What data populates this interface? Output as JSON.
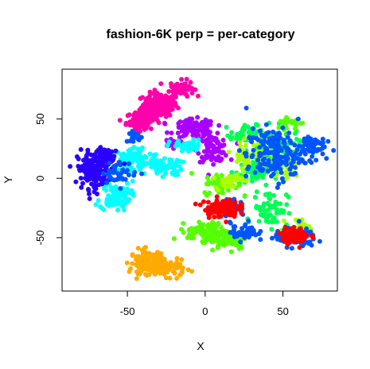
{
  "chart_data": {
    "type": "scatter",
    "title": "fashion-6K perp = per-category",
    "xlabel": "X",
    "ylabel": "Y",
    "xlim": [
      -92,
      85
    ],
    "ylim": [
      -95,
      92
    ],
    "xticks": [
      -50,
      0,
      50
    ],
    "yticks": [
      -50,
      0,
      50
    ],
    "xtick_labels": [
      "-50",
      "0",
      "50"
    ],
    "ytick_labels": [
      "-50",
      "0",
      "50"
    ],
    "grid": false,
    "legend": "none",
    "series": [
      {
        "color": "#FF00AA",
        "clusters": [
          {
            "cx": -29,
            "cy": 62,
            "rx": 10,
            "ry": 9,
            "n": 140
          },
          {
            "cx": -15,
            "cy": 76,
            "rx": 7,
            "ry": 6,
            "n": 70
          },
          {
            "cx": -42,
            "cy": 48,
            "rx": 8,
            "ry": 7,
            "n": 90
          },
          {
            "cx": -36,
            "cy": 55,
            "rx": 8,
            "ry": 6,
            "n": 70
          }
        ]
      },
      {
        "color": "#AA00FF",
        "clusters": [
          {
            "cx": -7,
            "cy": 42,
            "rx": 12,
            "ry": 7,
            "n": 110
          },
          {
            "cx": 5,
            "cy": 25,
            "rx": 9,
            "ry": 10,
            "n": 80
          },
          {
            "cx": -22,
            "cy": 30,
            "rx": 5,
            "ry": 4,
            "n": 20
          }
        ]
      },
      {
        "color": "#00FFFF",
        "clusters": [
          {
            "cx": -45,
            "cy": 15,
            "rx": 15,
            "ry": 11,
            "n": 110
          },
          {
            "cx": -58,
            "cy": -15,
            "rx": 9,
            "ry": 11,
            "n": 90
          },
          {
            "cx": -25,
            "cy": 10,
            "rx": 9,
            "ry": 7,
            "n": 50
          },
          {
            "cx": -12,
            "cy": 27,
            "rx": 10,
            "ry": 5,
            "n": 40
          }
        ]
      },
      {
        "color": "#2A00FF",
        "clusters": [
          {
            "cx": -72,
            "cy": 7,
            "rx": 9,
            "ry": 14,
            "n": 160
          },
          {
            "cx": -62,
            "cy": 17,
            "rx": 7,
            "ry": 8,
            "n": 60
          }
        ]
      },
      {
        "color": "#FFAA00",
        "clusters": [
          {
            "cx": -37,
            "cy": -70,
            "rx": 10,
            "ry": 9,
            "n": 110
          },
          {
            "cx": -25,
            "cy": -76,
            "rx": 11,
            "ry": 6,
            "n": 90
          }
        ]
      },
      {
        "color": "#00FF55",
        "clusters": [
          {
            "cx": 45,
            "cy": 25,
            "rx": 15,
            "ry": 15,
            "n": 120
          },
          {
            "cx": 42,
            "cy": -25,
            "rx": 10,
            "ry": 14,
            "n": 70
          },
          {
            "cx": 30,
            "cy": 5,
            "rx": 10,
            "ry": 9,
            "n": 60
          },
          {
            "cx": 25,
            "cy": 37,
            "rx": 8,
            "ry": 7,
            "n": 40
          }
        ]
      },
      {
        "color": "#55FF00",
        "clusters": [
          {
            "cx": 2,
            "cy": -45,
            "rx": 12,
            "ry": 7,
            "n": 110
          },
          {
            "cx": 15,
            "cy": -52,
            "rx": 11,
            "ry": 7,
            "n": 80
          },
          {
            "cx": 10,
            "cy": -5,
            "rx": 10,
            "ry": 8,
            "n": 50
          },
          {
            "cx": 55,
            "cy": 47,
            "rx": 8,
            "ry": 5,
            "n": 30
          }
        ]
      },
      {
        "color": "#AAFF00",
        "clusters": [
          {
            "cx": 28,
            "cy": 20,
            "rx": 10,
            "ry": 10,
            "n": 50
          },
          {
            "cx": 50,
            "cy": 8,
            "rx": 10,
            "ry": 10,
            "n": 40
          },
          {
            "cx": 15,
            "cy": -2,
            "rx": 8,
            "ry": 6,
            "n": 30
          },
          {
            "cx": 60,
            "cy": -40,
            "rx": 7,
            "ry": 5,
            "n": 20
          }
        ]
      },
      {
        "color": "#0055FF",
        "clusters": [
          {
            "cx": 45,
            "cy": 20,
            "rx": 17,
            "ry": 20,
            "n": 180
          },
          {
            "cx": 68,
            "cy": 28,
            "rx": 8,
            "ry": 8,
            "n": 60
          },
          {
            "cx": 58,
            "cy": -50,
            "rx": 12,
            "ry": 7,
            "n": 100
          },
          {
            "cx": 25,
            "cy": -45,
            "rx": 8,
            "ry": 7,
            "n": 50
          },
          {
            "cx": 15,
            "cy": -25,
            "rx": 10,
            "ry": 6,
            "n": 60
          },
          {
            "cx": -55,
            "cy": 5,
            "rx": 10,
            "ry": 8,
            "n": 40
          },
          {
            "cx": -45,
            "cy": 35,
            "rx": 6,
            "ry": 4,
            "n": 20
          }
        ]
      },
      {
        "color": "#FF0000",
        "clusters": [
          {
            "cx": 10,
            "cy": -25,
            "rx": 10,
            "ry": 7,
            "n": 110
          },
          {
            "cx": 58,
            "cy": -48,
            "rx": 8,
            "ry": 6,
            "n": 90
          }
        ]
      }
    ]
  }
}
